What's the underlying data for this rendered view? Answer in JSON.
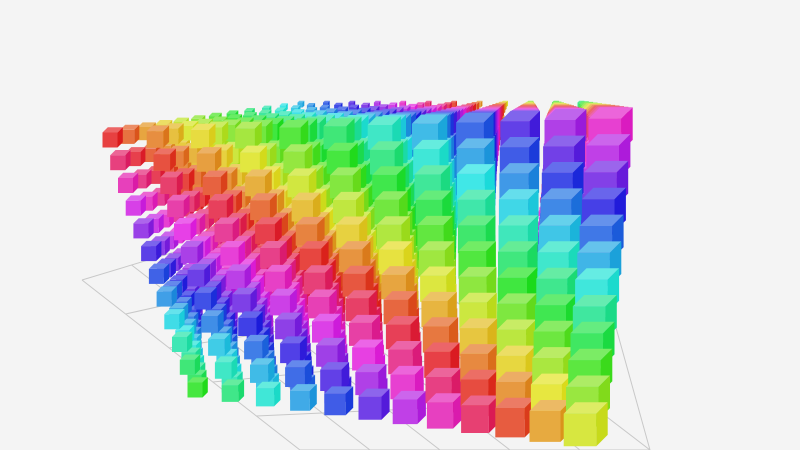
{
  "chart_data": {
    "type": "scatter3d",
    "mark_shape": "cube",
    "grid": true,
    "axis_labels_visible": false,
    "legend": "none",
    "color_encoding": "hue rainbow",
    "colors": {
      "background": "#f4f4f4",
      "grid": "#c8c8c8"
    }
  }
}
